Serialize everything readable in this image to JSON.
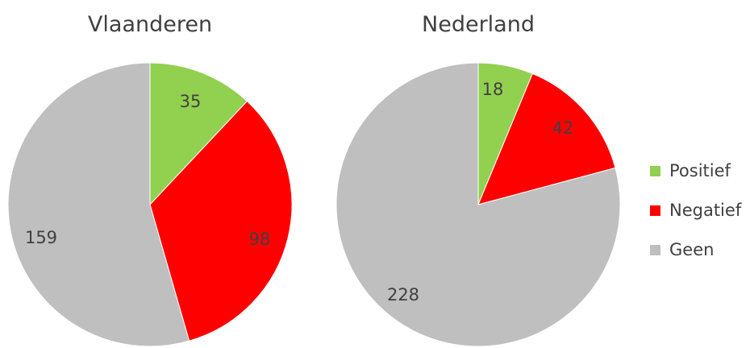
{
  "chart_data": [
    {
      "type": "pie",
      "title": "Vlaanderen",
      "categories": [
        "Positief",
        "Negatief",
        "Geen"
      ],
      "values": [
        35,
        98,
        159
      ],
      "colors": [
        "#92d050",
        "#ff0000",
        "#bfbfbf"
      ],
      "start_angle": "12 o'clock",
      "direction": "clockwise"
    },
    {
      "type": "pie",
      "title": "Nederland",
      "categories": [
        "Positief",
        "Negatief",
        "Geen"
      ],
      "values": [
        18,
        42,
        228
      ],
      "colors": [
        "#92d050",
        "#ff0000",
        "#bfbfbf"
      ],
      "start_angle": "12 o'clock",
      "direction": "clockwise"
    }
  ],
  "legend": {
    "placement": "right",
    "items": [
      {
        "label": "Positief",
        "color": "#92d050"
      },
      {
        "label": "Negatief",
        "color": "#ff0000"
      },
      {
        "label": "Geen",
        "color": "#bfbfbf"
      }
    ]
  }
}
